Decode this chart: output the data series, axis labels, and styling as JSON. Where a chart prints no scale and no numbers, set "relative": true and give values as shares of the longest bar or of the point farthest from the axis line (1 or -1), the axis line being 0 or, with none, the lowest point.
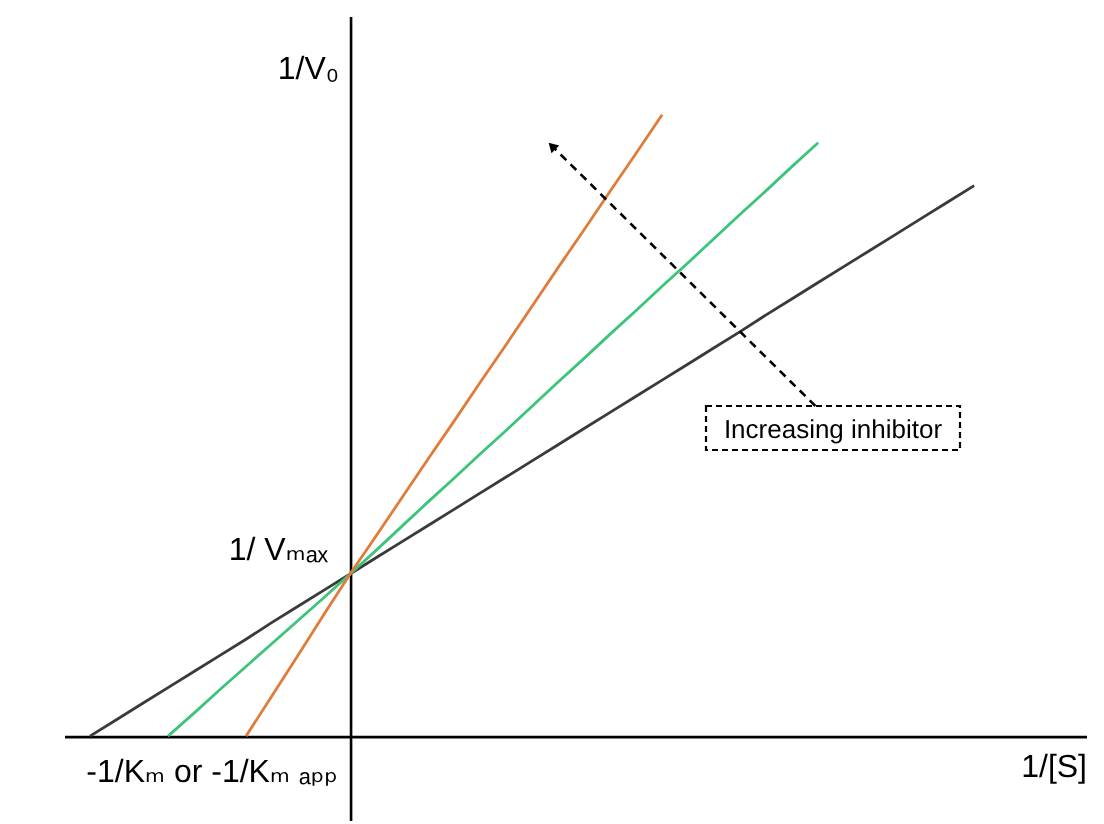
{
  "chart_data": {
    "type": "line",
    "relative": true,
    "xlabel": "1/[S]",
    "ylabel": "1/V₀",
    "line_style": "solid",
    "categories": [
      null,
      null,
      null,
      null,
      null,
      null,
      null,
      null,
      null,
      null,
      null,
      null,
      null,
      null,
      null,
      null,
      null,
      null,
      null,
      null,
      null,
      null,
      null,
      null,
      null,
      null,
      null,
      null,
      null,
      null,
      null,
      null,
      null,
      null,
      null
    ],
    "series": [
      {
        "color": "#3a3a3a",
        "values": [
          0,
          0.026,
          0.052,
          0.078,
          0.104,
          0.13,
          0.156,
          0.183,
          0.209,
          0.235,
          0.261,
          0.287,
          0.313,
          0.339,
          0.365,
          0.391,
          0.417,
          0.443,
          0.469,
          0.495,
          0.521,
          0.547,
          0.573,
          0.599,
          0.625,
          0.651,
          0.678,
          0.704,
          0.73,
          0.756,
          0.782,
          0.808,
          0.834,
          0.86,
          0.886
        ]
      },
      {
        "color": "#3cc47a",
        "values": [
          null,
          null,
          null,
          0,
          0.037,
          0.075,
          0.112,
          0.149,
          0.186,
          0.223,
          0.261,
          0.299,
          0.338,
          0.377,
          0.415,
          0.454,
          0.492,
          0.531,
          0.57,
          0.608,
          0.647,
          0.685,
          0.724,
          0.762,
          0.801,
          0.84,
          0.878,
          0.917,
          0.955,
          null,
          null,
          null,
          null,
          null,
          null
        ]
      },
      {
        "color": "#e07b39",
        "values": [
          null,
          null,
          null,
          null,
          null,
          null,
          0,
          0.065,
          0.13,
          0.196,
          0.261,
          0.322,
          0.384,
          0.446,
          0.507,
          0.569,
          0.63,
          0.692,
          0.754,
          0.815,
          0.877,
          0.938,
          1,
          null,
          null,
          null,
          null,
          null,
          null,
          null,
          null,
          null,
          null,
          null,
          null
        ]
      }
    ],
    "annotations": [
      "1/ Vₘₐₓ",
      "-1/Kₘ or -1/Kₘ ₐₚₚ",
      "Increasing inhibitor"
    ]
  }
}
